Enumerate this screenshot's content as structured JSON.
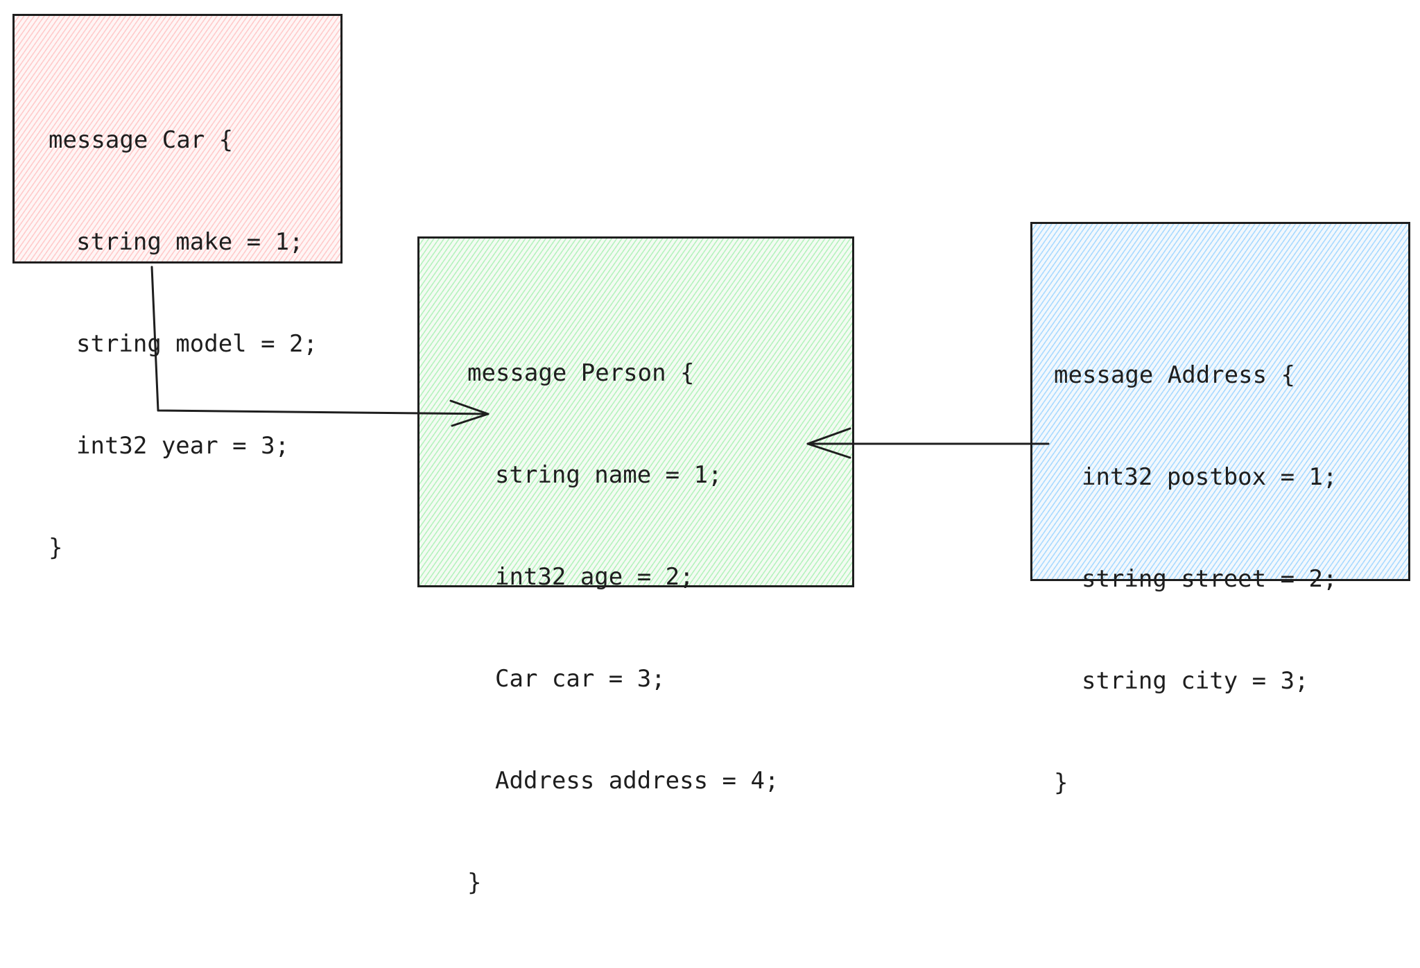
{
  "diagram": {
    "boxes": [
      {
        "id": "car",
        "fill_color": "#ffc9c9",
        "lines": [
          "message Car {",
          "string make = 1;",
          "string model = 2;",
          "int32 year = 3;",
          "}"
        ]
      },
      {
        "id": "person",
        "fill_color": "#b2f2bb",
        "lines": [
          "message Person {",
          "string name = 1;",
          "int32 age = 2;",
          "Car car = 3;",
          "Address address = 4;",
          "}"
        ]
      },
      {
        "id": "address",
        "fill_color": "#a5d8ff",
        "lines": [
          "message Address {",
          "int32 postbox = 1;",
          "string street = 2;",
          "string city = 3;",
          "}"
        ]
      }
    ],
    "connections": [
      {
        "from": "car",
        "to": "person.car"
      },
      {
        "from": "address",
        "to": "person.address"
      }
    ],
    "stroke_color": "#1e1e1e"
  }
}
